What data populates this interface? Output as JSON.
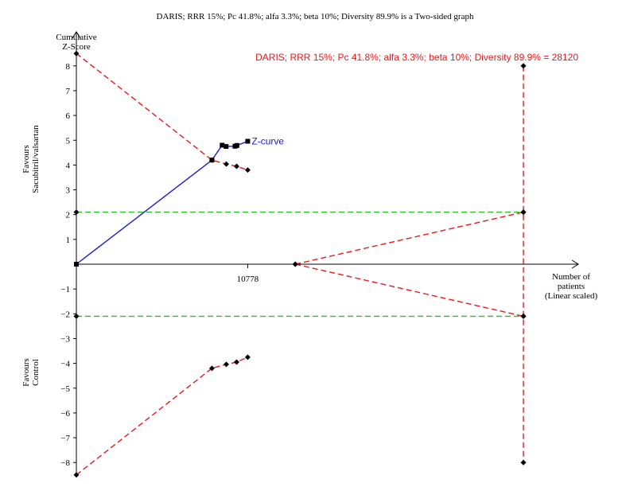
{
  "chart_data": {
    "type": "line",
    "title": "DARIS; RRR 15%; Pc 41.8%; alfa 3.3%; beta 10%; Diversity 89.9% is a Two-sided graph",
    "ylabel_lines": [
      "Cumulative",
      "Z-Score"
    ],
    "xlabel_lines": [
      "Number of",
      "patients",
      "(Linear scaled)"
    ],
    "favours_top_lines": [
      "Favours",
      "Sacubitril/valsartan"
    ],
    "favours_bottom_lines": [
      "Favours",
      "Control"
    ],
    "y_ticks": [
      8,
      7,
      6,
      5,
      4,
      3,
      2,
      1,
      -1,
      -2,
      -3,
      -4,
      -5,
      -6,
      -7,
      -8
    ],
    "y_tick_labels": [
      "8",
      "7",
      "6",
      "5",
      "4",
      "3",
      "2",
      "1",
      "−1",
      "−2",
      "−3",
      "−4",
      "−5",
      "−6",
      "−7",
      "−8"
    ],
    "ylim": [
      -8.5,
      8.5
    ],
    "xlim": [
      0,
      28120
    ],
    "x_tick": {
      "value": 10778,
      "label": "10778"
    },
    "required_information_size": {
      "value": 28120,
      "label": "DARIS; RRR 15%; Pc 41.8%; alfa 3.3%; beta 10%; Diversity 89.9% = 28120",
      "bound_top": 8,
      "bound_bottom": -8
    },
    "series": [
      {
        "name": "Z-curve",
        "color": "#1a1adb",
        "style": "solid",
        "points": [
          [
            0,
            0
          ],
          [
            8528,
            4.2
          ],
          [
            9170,
            4.8
          ],
          [
            9420,
            4.75
          ],
          [
            9980,
            4.76
          ],
          [
            10100,
            4.79
          ],
          [
            10778,
            4.96
          ]
        ]
      },
      {
        "role": "upper alpha-spending boundary",
        "color": "#e8191c",
        "style": "dashed",
        "points": [
          [
            0,
            8.5
          ],
          [
            8528,
            4.2
          ],
          [
            9430,
            4.04
          ],
          [
            10080,
            3.95
          ],
          [
            10778,
            3.8
          ]
        ]
      },
      {
        "role": "lower alpha-spending boundary",
        "color": "#e8191c",
        "style": "dashed",
        "points": [
          [
            0,
            -8.5
          ],
          [
            8528,
            -4.2
          ],
          [
            9430,
            -4.04
          ],
          [
            10080,
            -3.95
          ],
          [
            10778,
            -3.75
          ]
        ]
      },
      {
        "role": "upper futility boundary",
        "color": "#e8191c",
        "style": "dashed",
        "points": [
          [
            13770,
            0
          ],
          [
            28120,
            2.1
          ]
        ]
      },
      {
        "role": "lower futility boundary",
        "color": "#e8191c",
        "style": "dashed",
        "points": [
          [
            13770,
            0
          ],
          [
            28120,
            -2.1
          ]
        ]
      },
      {
        "role": "conventional boundary upper",
        "color": "#22c022",
        "style": "dashed",
        "points": [
          [
            0,
            2.1
          ],
          [
            28120,
            2.1
          ]
        ]
      },
      {
        "role": "conventional boundary lower",
        "color": "#22c022",
        "style": "dashed",
        "points": [
          [
            0,
            -2.1
          ],
          [
            28120,
            -2.1
          ]
        ]
      }
    ],
    "ris_vertical": {
      "color": "#e8191c",
      "style": "dashed",
      "x": 28120,
      "y_range": [
        -8,
        8
      ]
    },
    "grid": false,
    "legend": "none"
  }
}
